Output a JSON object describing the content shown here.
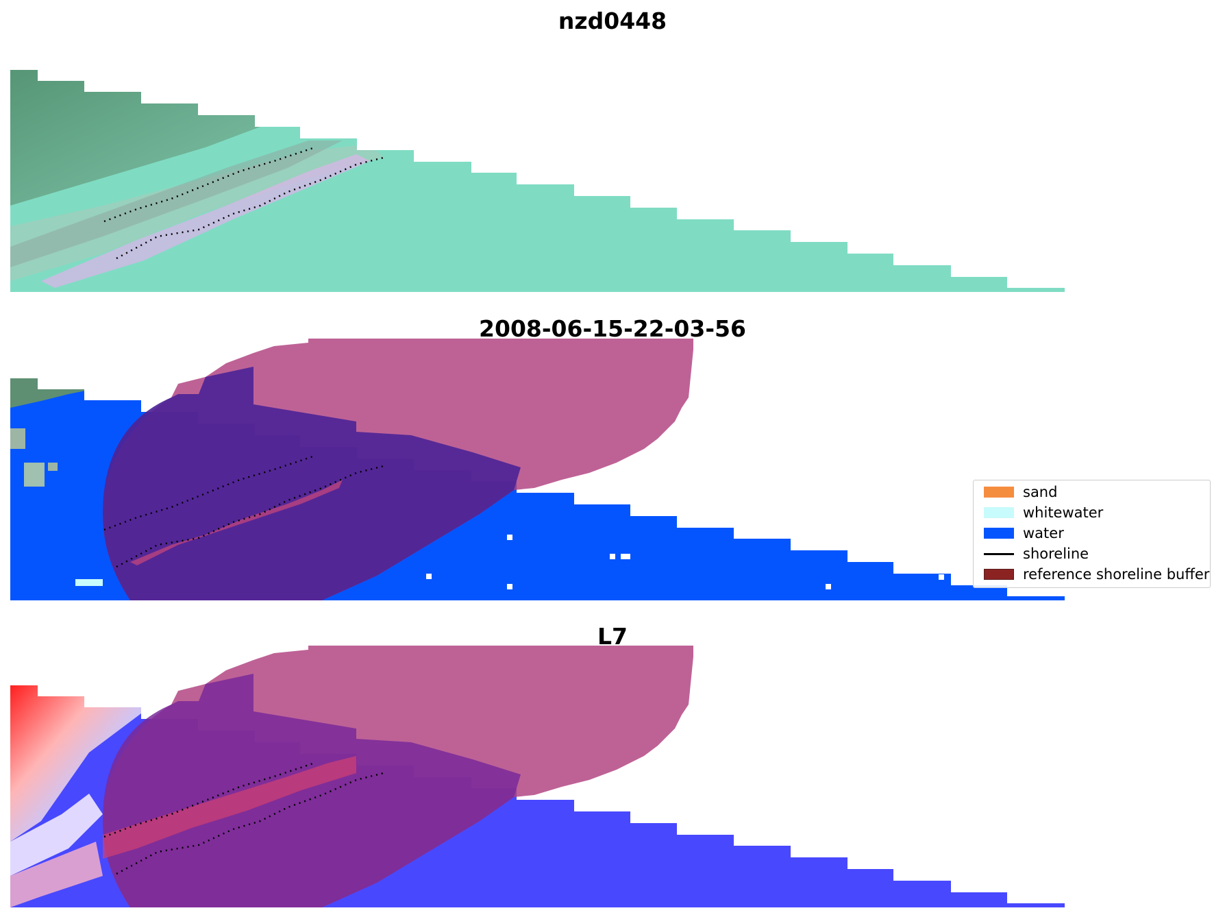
{
  "panels": [
    {
      "title": "nzd0448"
    },
    {
      "title": "2008-06-15-22-03-56"
    },
    {
      "title": "L7"
    }
  ],
  "legend": {
    "items": [
      {
        "label": "sand",
        "color": "#f58d3f",
        "kind": "patch"
      },
      {
        "label": "whitewater",
        "color": "#c8fbfb",
        "kind": "patch"
      },
      {
        "label": "water",
        "color": "#0555ff",
        "kind": "patch"
      },
      {
        "label": "shoreline",
        "color": "#000000",
        "kind": "line"
      },
      {
        "label": "reference shoreline buffer",
        "color": "#8b2323",
        "kind": "patch"
      }
    ]
  },
  "colors": {
    "rgb_base": "#7fdcc3",
    "vegetation": "#5a8f72",
    "water_class": "#0555ff",
    "buffer_overlay": "#b0407f",
    "buffer_over_water": "#4e2496",
    "mndwi_red": "#ff1f1f",
    "mndwi_blue": "#4848ff"
  }
}
